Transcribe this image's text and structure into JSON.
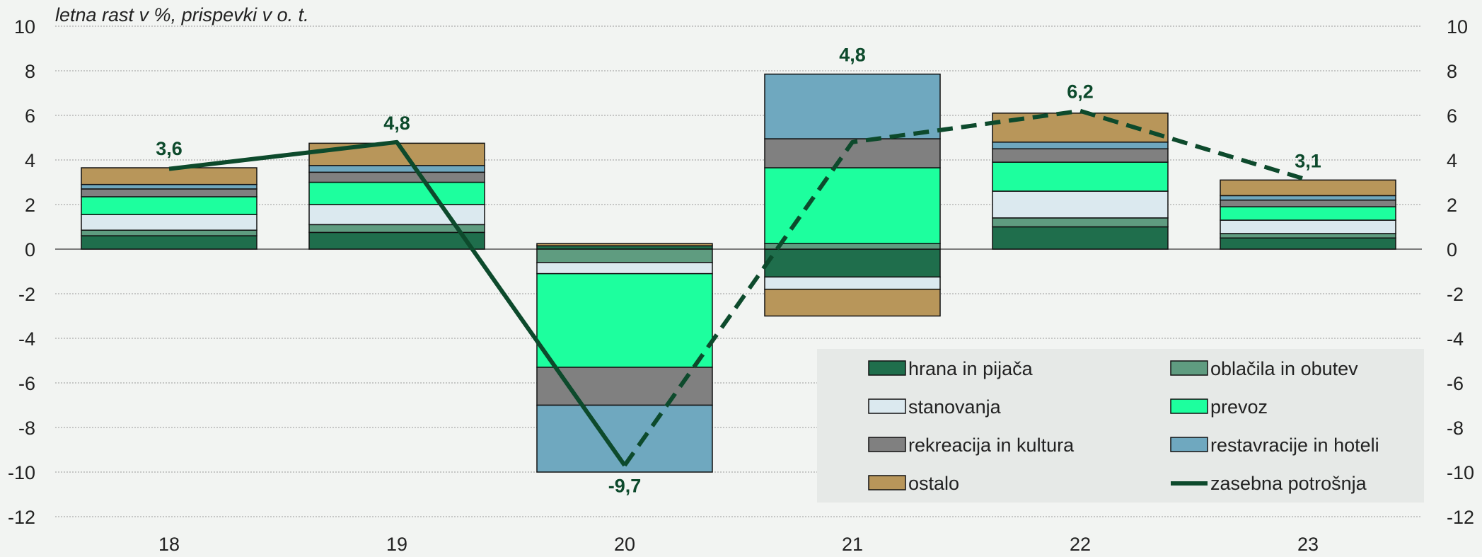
{
  "chart_data": {
    "type": "bar",
    "stacked": true,
    "title": "letna rast v %, prispevki v o. t.",
    "xlabel": "",
    "ylabel": "",
    "categories": [
      "18",
      "19",
      "20",
      "21",
      "22",
      "23"
    ],
    "ylim": [
      -12,
      10
    ],
    "yticks": [
      10,
      8,
      6,
      4,
      2,
      0,
      -2,
      -4,
      -6,
      -8,
      -10,
      -12
    ],
    "secondary_yaxis": true,
    "grid": "horizontal",
    "legend_position": "bottom-right",
    "series": [
      {
        "name": "hrana in pijača",
        "color": "#1f6e4c",
        "values": [
          0.6,
          0.75,
          0.15,
          -1.25,
          1.0,
          0.5
        ]
      },
      {
        "name": "oblačila in obutev",
        "color": "#5f9c80",
        "values": [
          0.25,
          0.35,
          -0.6,
          0.25,
          0.4,
          0.2
        ]
      },
      {
        "name": "stanovanja",
        "color": "#dbe9ef",
        "values": [
          0.7,
          0.9,
          -0.5,
          -0.55,
          1.2,
          0.6
        ]
      },
      {
        "name": "prevoz",
        "color": "#1dff9e",
        "values": [
          0.8,
          1.0,
          -4.2,
          3.4,
          1.3,
          0.6
        ]
      },
      {
        "name": "rekreacija in kultura",
        "color": "#808080",
        "values": [
          0.35,
          0.45,
          -1.7,
          1.3,
          0.6,
          0.3
        ]
      },
      {
        "name": "restavracije in hoteli",
        "color": "#6fa8bf",
        "values": [
          0.2,
          0.3,
          -3.0,
          2.9,
          0.3,
          0.2
        ]
      },
      {
        "name": "ostalo",
        "color": "#b8965a",
        "values": [
          0.75,
          1.0,
          0.1,
          -1.2,
          1.3,
          0.7
        ]
      }
    ],
    "line": {
      "name": "zasebna potrošnja",
      "color": "#0d4a2c",
      "values": [
        3.6,
        4.8,
        -9.7,
        4.8,
        6.2,
        3.1
      ],
      "labels": [
        "3,6",
        "4,8",
        "-9,7",
        "4,8",
        "6,2",
        "3,1"
      ],
      "solid_until_index": 2
    }
  }
}
